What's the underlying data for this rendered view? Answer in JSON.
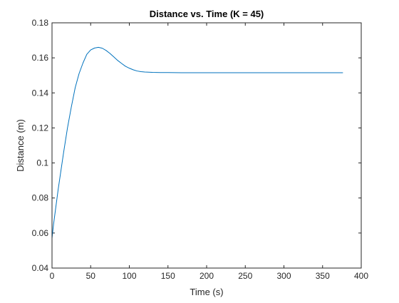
{
  "chart_data": {
    "type": "line",
    "title": "Distance vs. Time (K = 45)",
    "xlabel": "Time (s)",
    "ylabel": "Distance (m)",
    "xlim": [
      0,
      400
    ],
    "ylim": [
      0.04,
      0.18
    ],
    "xticks": [
      0,
      50,
      100,
      150,
      200,
      250,
      300,
      350,
      400
    ],
    "xtick_labels": [
      "0",
      "50",
      "100",
      "150",
      "200",
      "250",
      "300",
      "350",
      "400"
    ],
    "yticks": [
      0.04,
      0.06,
      0.08,
      0.1,
      0.12,
      0.14,
      0.16,
      0.18
    ],
    "ytick_labels": [
      "0.04",
      "0.06",
      "0.08",
      "0.1",
      "0.12",
      "0.14",
      "0.16",
      "0.18"
    ],
    "grid": false,
    "legend": "none",
    "line_color": "#0072BD",
    "axis_color": "#262626",
    "series": [
      {
        "x": [
          0,
          2,
          5,
          8,
          10,
          15,
          20,
          25,
          30,
          35,
          40,
          45,
          50,
          55,
          60,
          65,
          70,
          75,
          80,
          85,
          90,
          95,
          100,
          105,
          110,
          115,
          120,
          125,
          130,
          140,
          150,
          175,
          200,
          250,
          300,
          350,
          376
        ],
        "y": [
          0.057,
          0.065,
          0.075,
          0.085,
          0.091,
          0.106,
          0.12,
          0.132,
          0.143,
          0.151,
          0.157,
          0.162,
          0.1645,
          0.1656,
          0.166,
          0.1655,
          0.1642,
          0.1625,
          0.1605,
          0.1585,
          0.1568,
          0.1552,
          0.1541,
          0.1532,
          0.1525,
          0.1521,
          0.1519,
          0.1518,
          0.1517,
          0.1516,
          0.1516,
          0.1515,
          0.1515,
          0.1515,
          0.1515,
          0.1515,
          0.1515
        ]
      }
    ]
  }
}
